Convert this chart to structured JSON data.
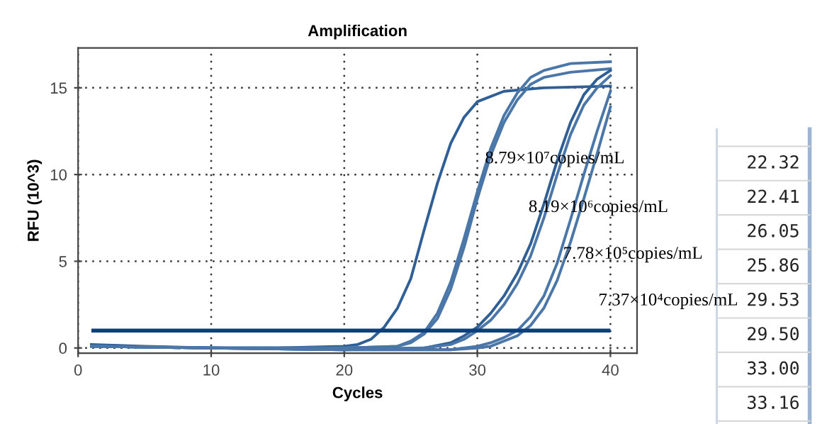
{
  "chart_data": {
    "type": "line",
    "title": "Amplification",
    "xlabel": "Cycles",
    "ylabel": "RFU (10^3)",
    "xlim": [
      0,
      42
    ],
    "ylim": [
      -0.3,
      17.3
    ],
    "xticks": [
      0,
      10,
      20,
      30,
      40
    ],
    "yticks": [
      0,
      5,
      10,
      15
    ],
    "grid": true,
    "line_style": "solid",
    "marker": "none",
    "series": [
      {
        "color": "#2f5f95",
        "x": [
          1,
          5,
          10,
          15,
          20,
          21,
          22,
          23,
          24,
          25,
          26,
          27,
          28,
          29,
          30,
          32,
          35,
          40
        ],
        "values": [
          0.2,
          0.1,
          0,
          0,
          0.1,
          0.2,
          0.5,
          1.2,
          2.3,
          4.0,
          6.8,
          9.5,
          11.8,
          13.3,
          14.2,
          14.8,
          15.0,
          15.1
        ]
      },
      {
        "color": "#4a76a8",
        "x": [
          1,
          10,
          20,
          24,
          25,
          26,
          27,
          28,
          29,
          30,
          31,
          32,
          33,
          34,
          35,
          37,
          40
        ],
        "values": [
          0.1,
          0,
          0,
          0.1,
          0.4,
          0.9,
          2.0,
          3.8,
          6.3,
          9.0,
          11.5,
          13.4,
          14.7,
          15.6,
          16.0,
          16.4,
          16.5
        ]
      },
      {
        "color": "#4a76a8",
        "x": [
          1,
          10,
          20,
          24,
          25,
          26,
          27,
          28,
          29,
          30,
          31,
          32,
          33,
          34,
          35,
          37,
          40
        ],
        "values": [
          0.1,
          0,
          0,
          0.1,
          0.3,
          0.8,
          1.7,
          3.4,
          5.8,
          8.6,
          11.1,
          13.0,
          14.3,
          15.2,
          15.6,
          15.9,
          16.1
        ]
      },
      {
        "color": "#2f5f95",
        "x": [
          1,
          10,
          20,
          26,
          28,
          29,
          30,
          31,
          32,
          33,
          34,
          35,
          36,
          37,
          38,
          39,
          40
        ],
        "values": [
          0.1,
          0,
          -0.1,
          0,
          0.3,
          0.7,
          1.2,
          2.0,
          3.0,
          4.3,
          6.0,
          8.3,
          10.8,
          13.0,
          14.6,
          15.5,
          16.0
        ]
      },
      {
        "color": "#4a76a8",
        "x": [
          1,
          10,
          20,
          26,
          28,
          29,
          30,
          31,
          32,
          33,
          34,
          35,
          36,
          37,
          38,
          39,
          40
        ],
        "values": [
          0.1,
          0,
          -0.1,
          0,
          0.2,
          0.5,
          1.0,
          1.6,
          2.5,
          3.7,
          5.3,
          7.5,
          10.0,
          12.3,
          14.0,
          15.0,
          15.7
        ]
      },
      {
        "color": "#4a76a8",
        "x": [
          1,
          10,
          20,
          28,
          30,
          31,
          32,
          33,
          34,
          35,
          36,
          37,
          38,
          39,
          40
        ],
        "values": [
          0.1,
          0,
          -0.1,
          -0.1,
          0.1,
          0.3,
          0.6,
          1.0,
          1.8,
          3.0,
          4.9,
          7.4,
          10.0,
          12.5,
          14.8
        ]
      },
      {
        "color": "#4a76a8",
        "x": [
          1,
          10,
          20,
          28,
          30,
          31,
          32,
          33,
          34,
          35,
          36,
          37,
          38,
          39,
          40
        ],
        "values": [
          0.1,
          0,
          -0.1,
          -0.1,
          0,
          0.1,
          0.4,
          0.7,
          1.3,
          2.3,
          3.9,
          6.1,
          8.6,
          11.2,
          13.9
        ]
      }
    ],
    "ref_lines": [
      {
        "axis": "y",
        "value": 1,
        "color": "#0d3f7a"
      }
    ],
    "annotations": [
      "8.79×10⁷copies/mL",
      "8.19×10⁶copies/mL",
      "7.78×10⁵copies/mL",
      "7.37×10⁴copies/mL",
      "22.32",
      "22.41",
      "26.05",
      "25.86",
      "29.53",
      "29.50",
      "33.00",
      "33.16"
    ]
  }
}
